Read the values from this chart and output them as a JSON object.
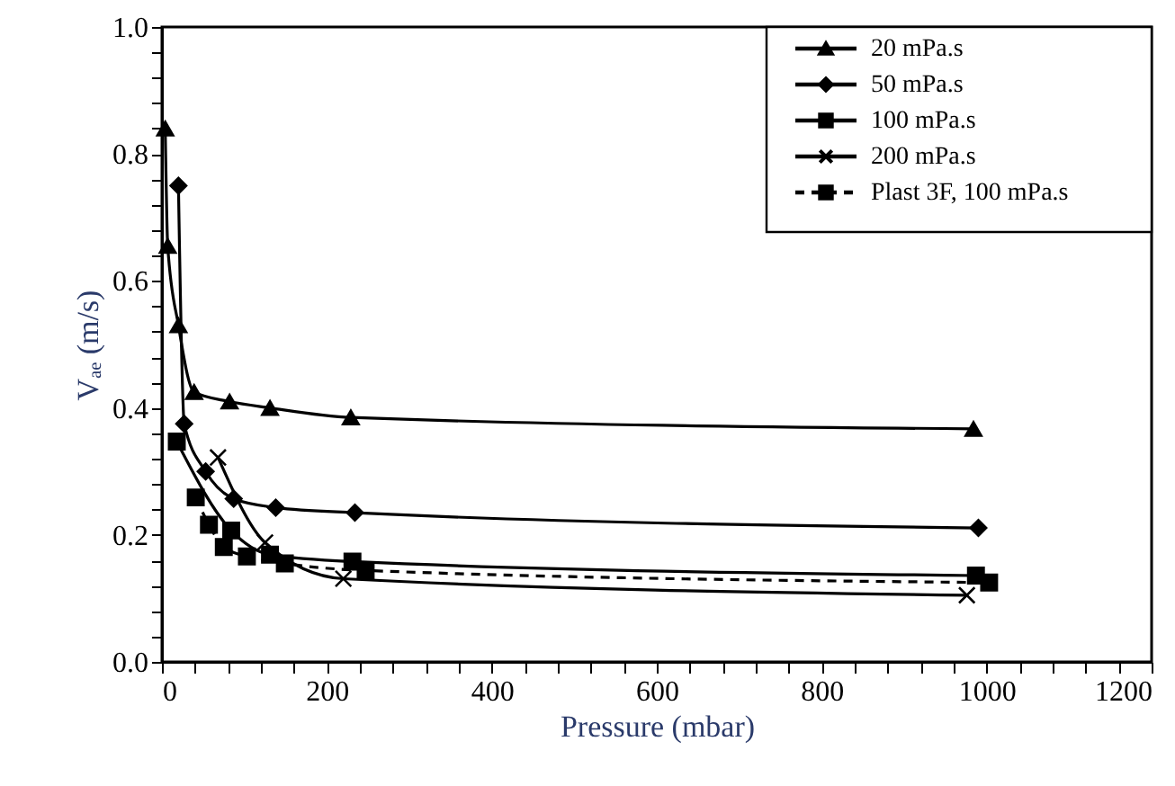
{
  "chart_data": {
    "type": "line",
    "xlabel": "Pressure (mbar)",
    "ylabel": "Vₐₑ (m/s)",
    "xlim": [
      0,
      1200
    ],
    "ylim": [
      0,
      1.0
    ],
    "xticks": [
      0,
      {
        "value": 40,
        "label": null
      },
      {
        "value": 80,
        "label": null
      },
      {
        "value": 120,
        "label": null
      },
      {
        "value": 160,
        "label": null
      },
      200,
      {
        "value": 240,
        "label": null
      },
      {
        "value": 280,
        "label": null
      },
      {
        "value": 320,
        "label": null
      },
      {
        "value": 360,
        "label": null
      },
      400,
      {
        "value": 440,
        "label": null
      },
      {
        "value": 480,
        "label": null
      },
      {
        "value": 520,
        "label": null
      },
      {
        "value": 560,
        "label": null
      },
      600,
      {
        "value": 640,
        "label": null
      },
      {
        "value": 680,
        "label": null
      },
      {
        "value": 720,
        "label": null
      },
      {
        "value": 760,
        "label": null
      },
      800,
      {
        "value": 840,
        "label": null
      },
      {
        "value": 880,
        "label": null
      },
      {
        "value": 920,
        "label": null
      },
      {
        "value": 960,
        "label": null
      },
      1000,
      {
        "value": 1040,
        "label": null
      },
      {
        "value": 1080,
        "label": null
      },
      {
        "value": 1120,
        "label": null
      },
      {
        "value": 1160,
        "label": null
      },
      1200
    ],
    "yticks": [
      {
        "value": 0,
        "label": "0.0"
      },
      {
        "value": 0.04,
        "label": null
      },
      {
        "value": 0.08,
        "label": null
      },
      {
        "value": 0.12,
        "label": null
      },
      {
        "value": 0.16,
        "label": null
      },
      0.2,
      {
        "value": 0.24,
        "label": null
      },
      {
        "value": 0.28,
        "label": null
      },
      {
        "value": 0.32,
        "label": null
      },
      {
        "value": 0.36,
        "label": null
      },
      0.4,
      {
        "value": 0.44,
        "label": null
      },
      {
        "value": 0.48,
        "label": null
      },
      {
        "value": 0.52,
        "label": null
      },
      {
        "value": 0.56,
        "label": null
      },
      0.6,
      {
        "value": 0.64,
        "label": null
      },
      {
        "value": 0.68,
        "label": null
      },
      {
        "value": 0.72,
        "label": null
      },
      {
        "value": 0.76,
        "label": null
      },
      0.8,
      {
        "value": 0.84,
        "label": null
      },
      {
        "value": 0.88,
        "label": null
      },
      {
        "value": 0.92,
        "label": null
      },
      {
        "value": 0.96,
        "label": null
      },
      {
        "value": 1.0,
        "label": "1.0"
      }
    ],
    "grid": false,
    "legend": "top right",
    "series": [
      {
        "name": "20 mPa.s",
        "color": "#000000",
        "marker": "triangle",
        "line_style": "solid",
        "x": [
          4,
          7,
          20,
          39,
          82,
          131,
          229,
          984
        ],
        "values": [
          0.84,
          0.655,
          0.53,
          0.425,
          0.41,
          0.4,
          0.385,
          0.367
        ]
      },
      {
        "name": "50 mPa.s",
        "color": "#000000",
        "marker": "diamond",
        "line_style": "solid",
        "x": [
          20,
          27,
          53,
          87,
          138,
          234,
          990
        ],
        "values": [
          0.75,
          0.375,
          0.3,
          0.257,
          0.243,
          0.235,
          0.211
        ]
      },
      {
        "name": "100 mPa.s",
        "color": "#000000",
        "marker": "square",
        "line_style": "solid",
        "x": [
          18,
          84,
          131,
          231,
          987
        ],
        "values": [
          0.347,
          0.207,
          0.169,
          0.158,
          0.136
        ]
      },
      {
        "name": "200 mPa.s",
        "color": "#000000",
        "marker": "cross",
        "line_style": "solid",
        "x": [
          68,
          125,
          220,
          976
        ],
        "values": [
          0.322,
          0.188,
          0.131,
          0.105
        ]
      },
      {
        "name": "Plast 3F, 100 mPa.s",
        "color": "#000000",
        "marker": "square",
        "line_style": "dashed",
        "x": [
          41,
          57,
          75,
          103,
          149,
          247,
          1003
        ],
        "values": [
          0.259,
          0.216,
          0.181,
          0.166,
          0.155,
          0.144,
          0.125
        ]
      }
    ]
  }
}
